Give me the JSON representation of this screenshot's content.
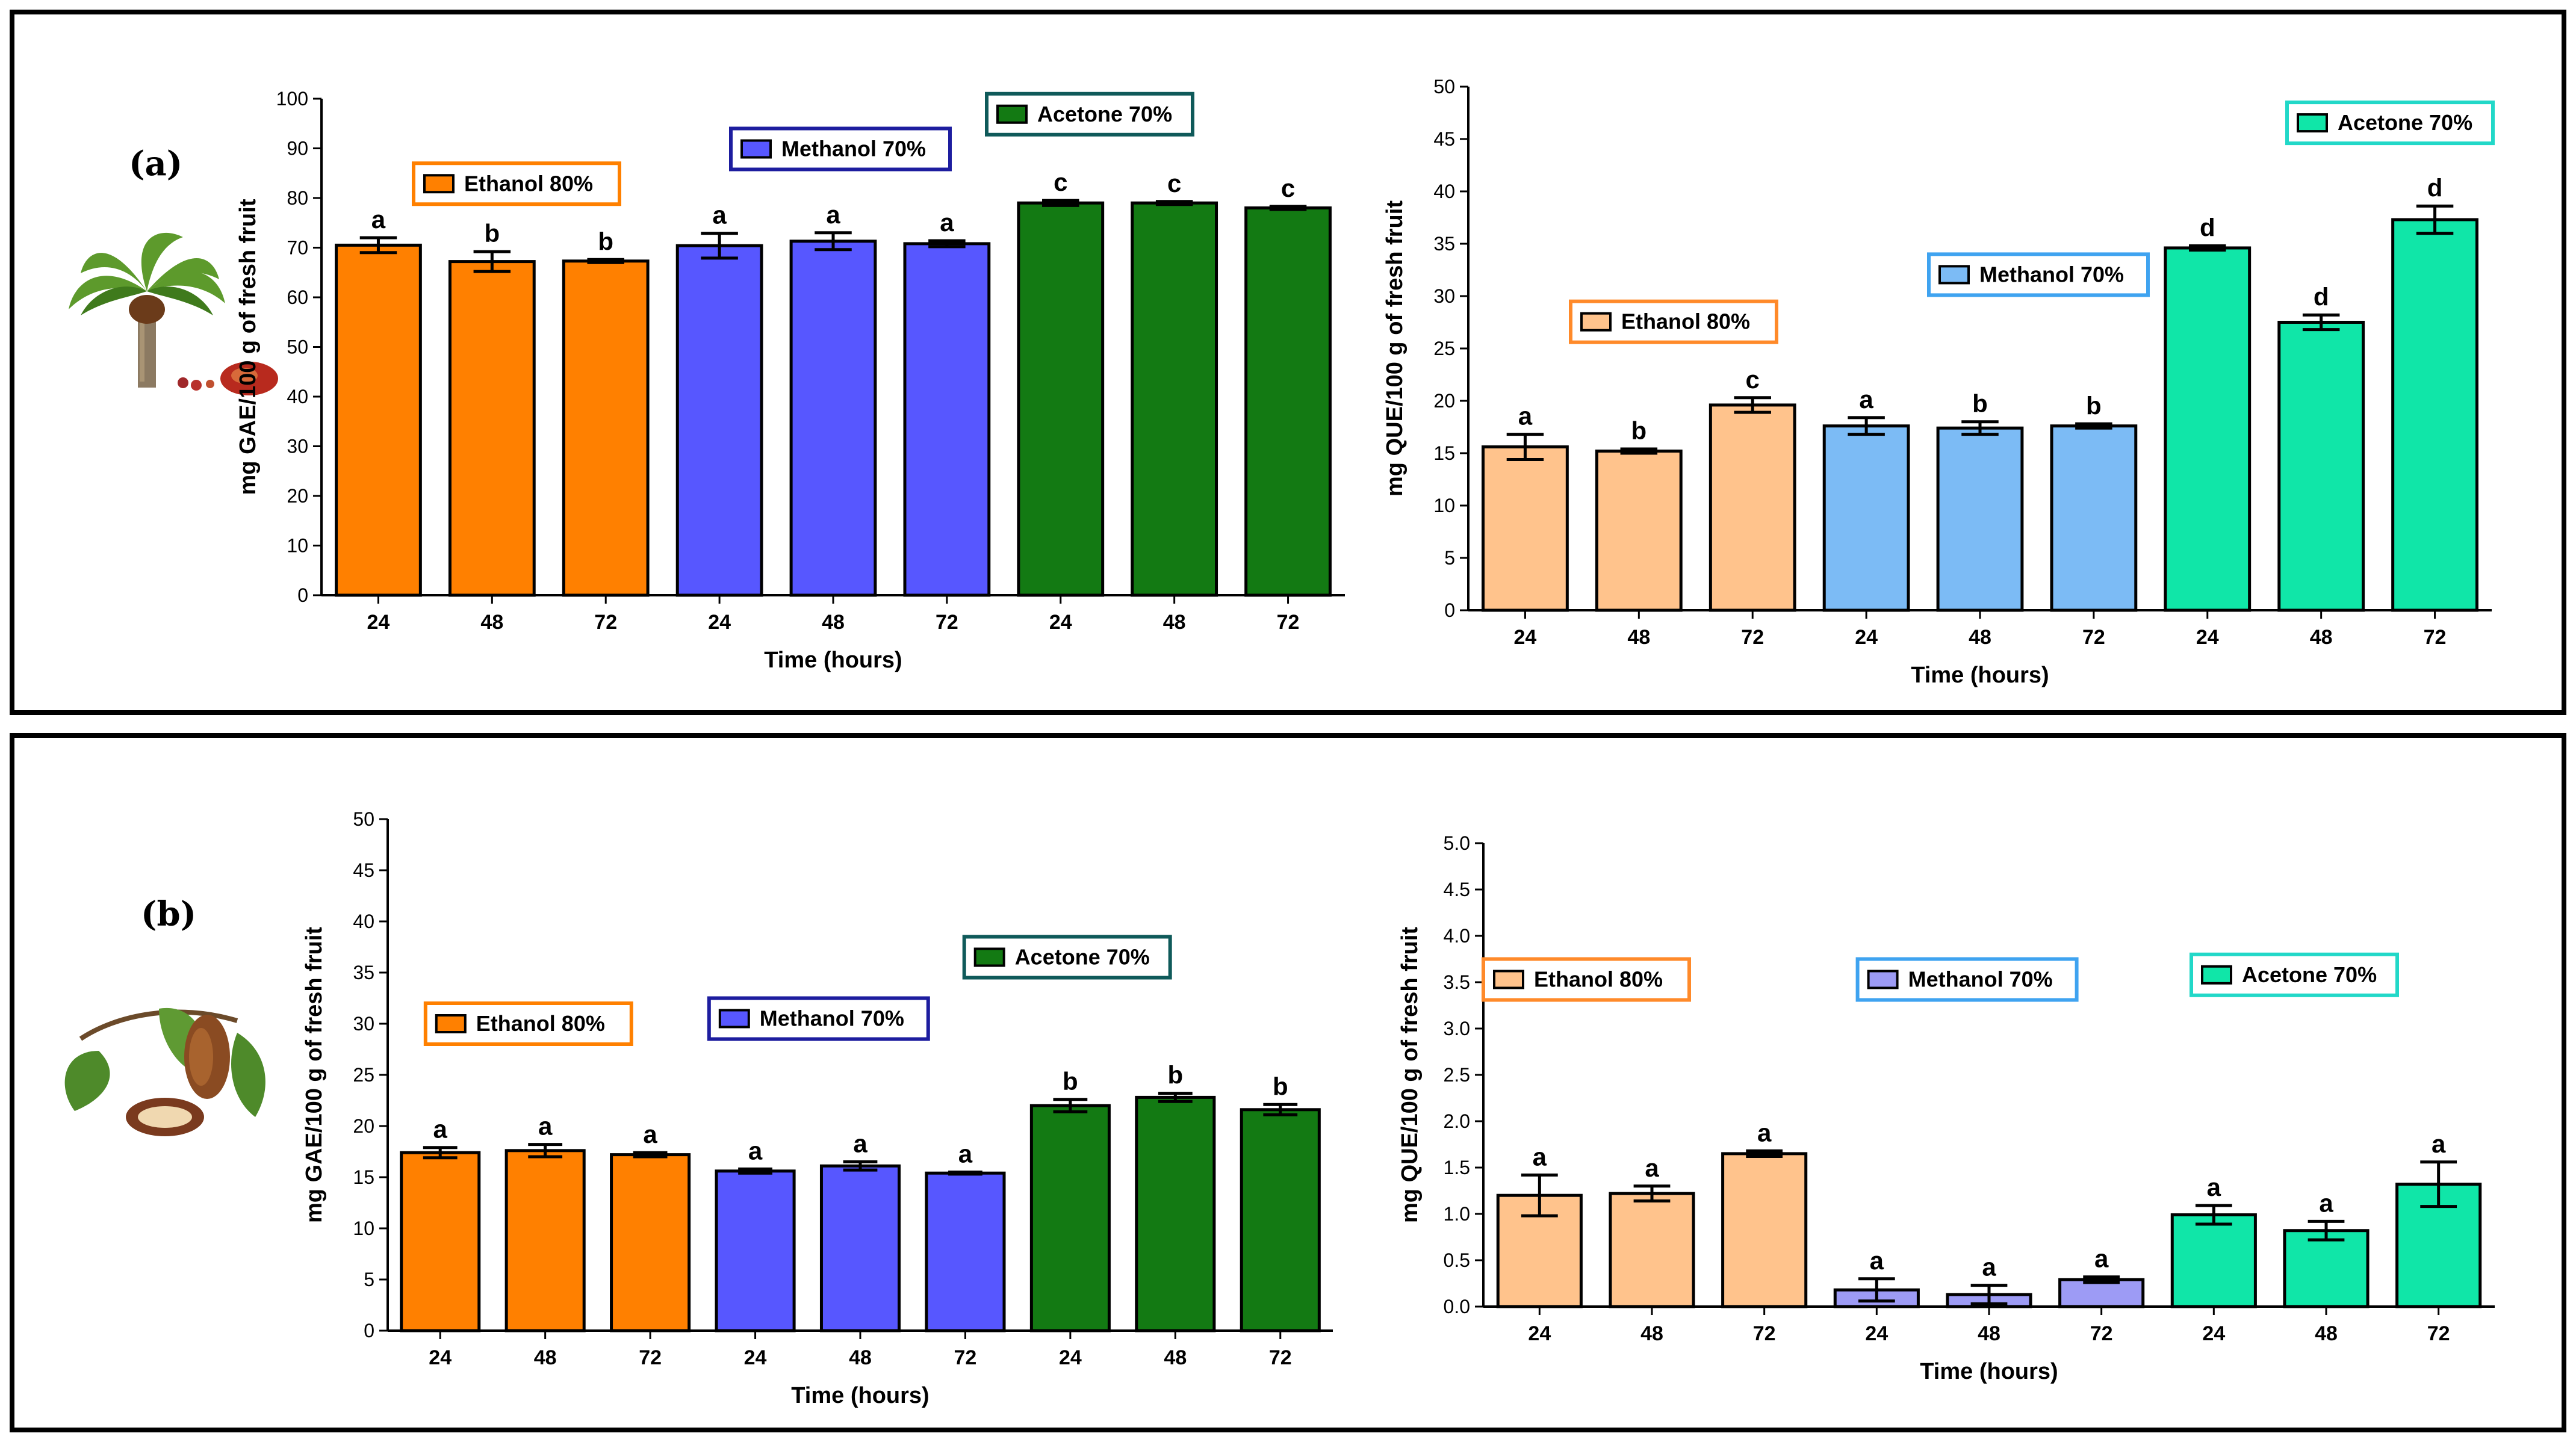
{
  "panels": [
    {
      "label": "(a)",
      "illustration": "oil-palm-tree-with-fruits"
    },
    {
      "label": "(b)",
      "illustration": "cocoa-pod-branch"
    }
  ],
  "chart_data": [
    {
      "type": "bar",
      "panel": "(a)",
      "title": "",
      "xlabel": "Time (hours)",
      "ylabel": "mg GAE/100 g of fresh fruit",
      "ylim": [
        0,
        100
      ],
      "ytick_step": 10,
      "categories": [
        "24",
        "48",
        "72",
        "24",
        "48",
        "72",
        "24",
        "48",
        "72"
      ],
      "values": [
        70.5,
        67.2,
        67.3,
        70.4,
        71.3,
        70.8,
        79.0,
        79.0,
        78.0
      ],
      "errors": [
        1.5,
        2.0,
        0.3,
        2.5,
        1.7,
        0.6,
        0.5,
        0.3,
        0.3
      ],
      "letters": [
        "a",
        "b",
        "b",
        "a",
        "a",
        "a",
        "c",
        "c",
        "c"
      ],
      "groups": [
        {
          "name": "Ethanol 80%",
          "color": "#ff8000",
          "border": "#ff8000"
        },
        {
          "name": "Methanol 70%",
          "color": "#5757ff",
          "border": "#1d1d9f"
        },
        {
          "name": "Acetone 70%",
          "color": "#137a13",
          "border": "#0f5a5a"
        }
      ]
    },
    {
      "type": "bar",
      "panel": "(a)",
      "title": "",
      "xlabel": "Time (hours)",
      "ylabel": "mg QUE/100 g of fresh fruit",
      "ylim": [
        0,
        50
      ],
      "ytick_step": 5,
      "categories": [
        "24",
        "48",
        "72",
        "24",
        "48",
        "72",
        "24",
        "48",
        "72"
      ],
      "values": [
        15.6,
        15.2,
        19.6,
        17.6,
        17.4,
        17.6,
        34.6,
        27.5,
        37.3
      ],
      "errors": [
        1.2,
        0.2,
        0.7,
        0.8,
        0.6,
        0.2,
        0.2,
        0.7,
        1.3
      ],
      "letters": [
        "a",
        "b",
        "c",
        "a",
        "b",
        "b",
        "d",
        "d",
        "d"
      ],
      "groups": [
        {
          "name": "Ethanol 80%",
          "color": "#ffc38c",
          "border": "#ff8a2a"
        },
        {
          "name": "Methanol 70%",
          "color": "#7cbbf5",
          "border": "#3fa3f0"
        },
        {
          "name": "Acetone 70%",
          "color": "#10e6a8",
          "border": "#22d8c8"
        }
      ]
    },
    {
      "type": "bar",
      "panel": "(b)",
      "title": "",
      "xlabel": "Time (hours)",
      "ylabel": "mg GAE/100 g of fresh fruit",
      "ylim": [
        0,
        50
      ],
      "ytick_step": 5,
      "categories": [
        "24",
        "48",
        "72",
        "24",
        "48",
        "72",
        "24",
        "48",
        "72"
      ],
      "values": [
        17.4,
        17.6,
        17.2,
        15.6,
        16.1,
        15.4,
        22.0,
        22.8,
        21.6
      ],
      "errors": [
        0.5,
        0.6,
        0.2,
        0.2,
        0.4,
        0.1,
        0.6,
        0.4,
        0.5
      ],
      "letters": [
        "a",
        "a",
        "a",
        "a",
        "a",
        "a",
        "b",
        "b",
        "b"
      ],
      "groups": [
        {
          "name": "Ethanol 80%",
          "color": "#ff8000",
          "border": "#ff8000"
        },
        {
          "name": "Methanol 70%",
          "color": "#5757ff",
          "border": "#1d1d9f"
        },
        {
          "name": "Acetone 70%",
          "color": "#137a13",
          "border": "#0f5a5a"
        }
      ]
    },
    {
      "type": "bar",
      "panel": "(b)",
      "title": "",
      "xlabel": "Time (hours)",
      "ylabel": "mg QUE/100 g of fresh fruit",
      "ylim": [
        0,
        5
      ],
      "ytick_step": 0.5,
      "categories": [
        "24",
        "48",
        "72",
        "24",
        "48",
        "72",
        "24",
        "48",
        "72"
      ],
      "values": [
        1.2,
        1.22,
        1.65,
        0.18,
        0.13,
        0.29,
        0.99,
        0.82,
        1.32
      ],
      "errors": [
        0.22,
        0.08,
        0.03,
        0.12,
        0.1,
        0.03,
        0.1,
        0.1,
        0.24
      ],
      "letters": [
        "a",
        "a",
        "a",
        "a",
        "a",
        "a",
        "a",
        "a",
        "a"
      ],
      "groups": [
        {
          "name": "Ethanol 80%",
          "color": "#ffc38c",
          "border": "#ff8a2a"
        },
        {
          "name": "Methanol 70%",
          "color": "#9d9bf5",
          "border": "#3fa3f0"
        },
        {
          "name": "Acetone 70%",
          "color": "#10e6a8",
          "border": "#22d8c8"
        }
      ]
    }
  ]
}
